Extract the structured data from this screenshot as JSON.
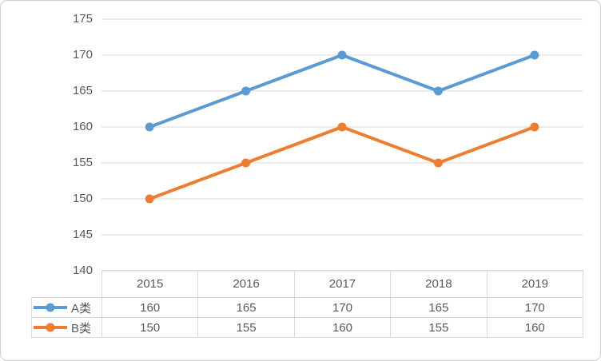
{
  "chart_data": {
    "type": "line",
    "title": "",
    "xlabel": "",
    "ylabel": "",
    "categories": [
      "2015",
      "2016",
      "2017",
      "2018",
      "2019"
    ],
    "series": [
      {
        "name": "A类",
        "values": [
          160,
          165,
          170,
          165,
          170
        ],
        "color": "#5B9BD5"
      },
      {
        "name": "B类",
        "values": [
          150,
          155,
          160,
          155,
          160
        ],
        "color": "#ED7D31"
      }
    ],
    "ylim": [
      140,
      175
    ],
    "ytick_step": 5,
    "yticks": [
      "175",
      "170",
      "165",
      "160",
      "155",
      "150",
      "145",
      "140"
    ],
    "grid": "horizontal-only",
    "legend_position": "table-left-keys",
    "marker": "circle"
  },
  "colors": {
    "grid": "#D9D9D9",
    "table_border": "#D9D9D9",
    "frame_border": "#D0CECE",
    "text": "#595959",
    "background": "#FFFFFF"
  }
}
